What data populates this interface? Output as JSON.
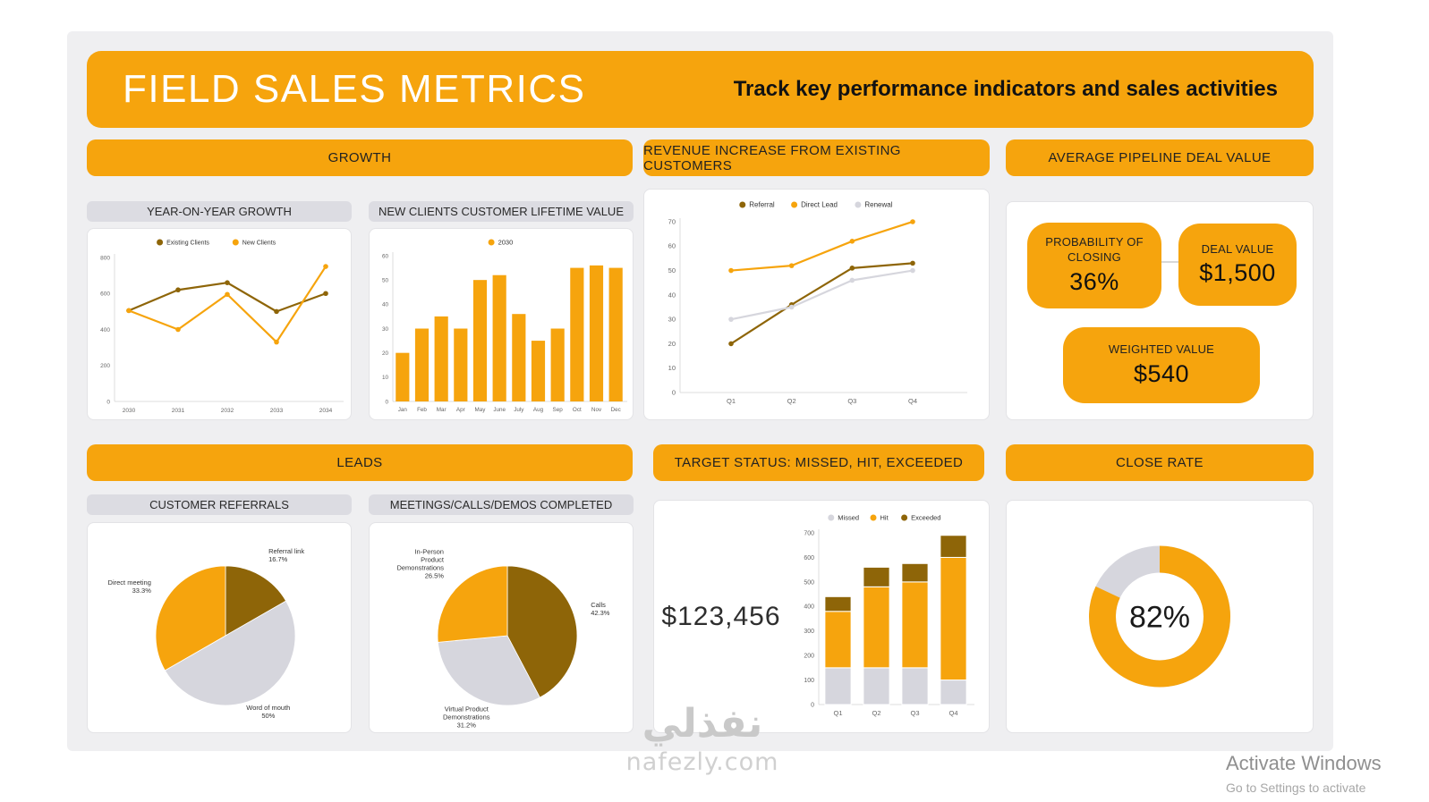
{
  "page": {
    "title": "FIELD SALES METRICS",
    "subtitle": "Track key performance indicators and sales activities"
  },
  "colors": {
    "orange": "#F6A40D",
    "dark_brown": "#8E6508",
    "light_gray": "#D6D6DD"
  },
  "sections": {
    "growth": "GROWTH",
    "revenue": "REVENUE INCREASE FROM EXISTING CUSTOMERS",
    "pipeline": "AVERAGE PIPELINE DEAL VALUE",
    "leads": "LEADS",
    "target": "TARGET STATUS: MISSED, HIT, EXCEEDED",
    "close_rate": "CLOSE RATE"
  },
  "subheaders": {
    "yoy": "YEAR-ON-YEAR GROWTH",
    "clv": "NEW CLIENTS CUSTOMER LIFETIME VALUE",
    "referrals": "CUSTOMER REFERRALS",
    "meetings": "MEETINGS/CALLS/DEMOS COMPLETED"
  },
  "pipeline_cards": {
    "probability_label": "PROBABILITY OF CLOSING",
    "probability_value": "36%",
    "deal_label": "DEAL VALUE",
    "deal_value": "$1,500",
    "weighted_label": "WEIGHTED VALUE",
    "weighted_value": "$540"
  },
  "target_panel": {
    "amount": "$123,456"
  },
  "watermark": {
    "arabic": "نفذلي",
    "site": "nafezly.com"
  },
  "system": {
    "activate_line1": "Activate Windows",
    "activate_line2": "Go to Settings to activate"
  },
  "chart_data": [
    {
      "id": "yoy_growth",
      "type": "line",
      "title": "YEAR-ON-YEAR GROWTH",
      "categories": [
        "2030",
        "2031",
        "2032",
        "2033",
        "2034"
      ],
      "series": [
        {
          "name": "Existing Clients",
          "color": "#8E6508",
          "values": [
            505,
            620,
            660,
            500,
            600
          ]
        },
        {
          "name": "New Clients",
          "color": "#F6A40D",
          "values": [
            505,
            400,
            595,
            330,
            750
          ]
        }
      ],
      "ylim": [
        0,
        800
      ],
      "yticks": [
        0,
        200,
        400,
        600,
        800
      ],
      "grid": false,
      "legend_position": "top"
    },
    {
      "id": "clv",
      "type": "bar",
      "title": "NEW CLIENTS CUSTOMER LIFETIME VALUE",
      "categories": [
        "Jan",
        "Feb",
        "Mar",
        "Apr",
        "May",
        "June",
        "July",
        "Aug",
        "Sep",
        "Oct",
        "Nov",
        "Dec"
      ],
      "series": [
        {
          "name": "2030",
          "color": "#F6A40D",
          "values": [
            20,
            30,
            35,
            30,
            50,
            52,
            36,
            25,
            30,
            55,
            56,
            55
          ]
        }
      ],
      "ylim": [
        0,
        60
      ],
      "yticks": [
        0,
        10,
        20,
        30,
        40,
        50,
        60
      ],
      "grid": false,
      "legend_position": "top"
    },
    {
      "id": "revenue_increase",
      "type": "line",
      "title": "REVENUE INCREASE FROM EXISTING CUSTOMERS",
      "categories": [
        "Q1",
        "Q2",
        "Q3",
        "Q4"
      ],
      "series": [
        {
          "name": "Referral",
          "color": "#8E6508",
          "values": [
            20,
            36,
            51,
            53
          ]
        },
        {
          "name": "Direct Lead",
          "color": "#F6A40D",
          "values": [
            50,
            52,
            62,
            70
          ]
        },
        {
          "name": "Renewal",
          "color": "#D6D6DD",
          "values": [
            30,
            35,
            46,
            50
          ]
        }
      ],
      "ylim": [
        0,
        70
      ],
      "yticks": [
        0,
        10,
        20,
        30,
        40,
        50,
        60,
        70
      ],
      "grid": false,
      "legend_position": "top"
    },
    {
      "id": "customer_referrals",
      "type": "pie",
      "title": "CUSTOMER REFERRALS",
      "slices": [
        {
          "label": "Referral link",
          "pct": 16.7,
          "color": "#8E6508",
          "label_lines": [
            "Referral link",
            "16.7%"
          ]
        },
        {
          "label": "Word of mouth",
          "pct": 50,
          "color": "#D6D6DD",
          "label_lines": [
            "Word of mouth",
            "50%"
          ]
        },
        {
          "label": "Direct meeting",
          "pct": 33.3,
          "color": "#F6A40D",
          "label_lines": [
            "Direct meeting",
            "33.3%"
          ]
        }
      ]
    },
    {
      "id": "meetings_completed",
      "type": "pie",
      "title": "MEETINGS/CALLS/DEMOS COMPLETED",
      "slices": [
        {
          "label": "Calls",
          "pct": 42.3,
          "color": "#8E6508",
          "label_lines": [
            "Calls",
            "42.3%"
          ]
        },
        {
          "label": "Virtual Product Demonstrations",
          "pct": 31.2,
          "color": "#D6D6DD",
          "label_lines": [
            "Virtual Product",
            "Demonstrations",
            "31.2%"
          ]
        },
        {
          "label": "In-Person Product Demonstrations",
          "pct": 26.5,
          "color": "#F6A40D",
          "label_lines": [
            "In-Person",
            "Product",
            "Demonstrations",
            "26.5%"
          ]
        }
      ]
    },
    {
      "id": "target_status",
      "type": "stacked_bar",
      "title": "TARGET STATUS: MISSED, HIT, EXCEEDED",
      "categories": [
        "Q1",
        "Q2",
        "Q3",
        "Q4"
      ],
      "series": [
        {
          "name": "Missed",
          "color": "#D6D6DD",
          "values": [
            150,
            150,
            150,
            100
          ]
        },
        {
          "name": "Hit",
          "color": "#F6A40D",
          "values": [
            230,
            330,
            350,
            500
          ]
        },
        {
          "name": "Exceeded",
          "color": "#8E6508",
          "values": [
            60,
            80,
            75,
            90
          ]
        }
      ],
      "ylim": [
        0,
        700
      ],
      "yticks": [
        0,
        100,
        200,
        300,
        400,
        500,
        600,
        700
      ],
      "grid": false,
      "legend_position": "top"
    },
    {
      "id": "close_rate",
      "type": "donut",
      "title": "CLOSE RATE",
      "value": 82,
      "label": "82%",
      "color": "#F6A40D",
      "track_color": "#D6D6DD"
    }
  ]
}
